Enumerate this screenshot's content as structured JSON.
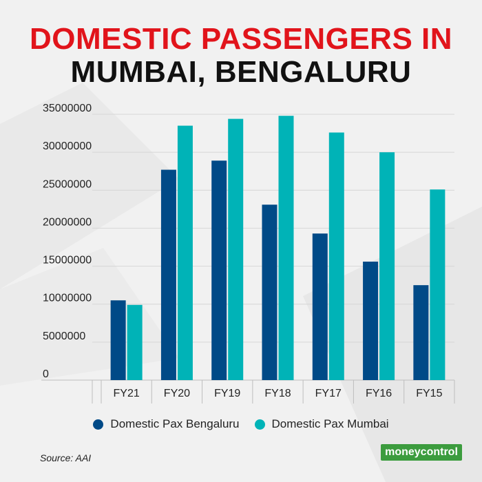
{
  "title_line1": "DOMESTIC PASSENGERS IN",
  "title_line2": "MUMBAI, BENGALURU",
  "colors": {
    "title_red": "#e1141b",
    "bengaluru": "#004a87",
    "mumbai": "#00b3b7",
    "logo_bg": "#3c9c3e"
  },
  "chart_data": {
    "type": "bar",
    "title": "DOMESTIC PASSENGERS IN MUMBAI, BENGALURU",
    "categories": [
      "FY21",
      "FY20",
      "FY19",
      "FY18",
      "FY17",
      "FY16",
      "FY15"
    ],
    "series": [
      {
        "name": "Domestic Pax Bengaluru",
        "values": [
          10500000,
          27700000,
          28900000,
          23100000,
          19300000,
          15600000,
          12500000
        ]
      },
      {
        "name": "Domestic Pax Mumbai",
        "values": [
          9900000,
          33500000,
          34400000,
          34800000,
          32600000,
          30000000,
          25100000
        ]
      }
    ],
    "yticks": [
      0,
      5000000,
      10000000,
      15000000,
      20000000,
      25000000,
      30000000,
      35000000
    ],
    "ylim": [
      0,
      35000000
    ],
    "xlabel": "",
    "ylabel": "",
    "grid": true,
    "legend_position": "bottom"
  },
  "source": "Source: AAI",
  "logo": {
    "part1": "money",
    "part2": "control"
  }
}
